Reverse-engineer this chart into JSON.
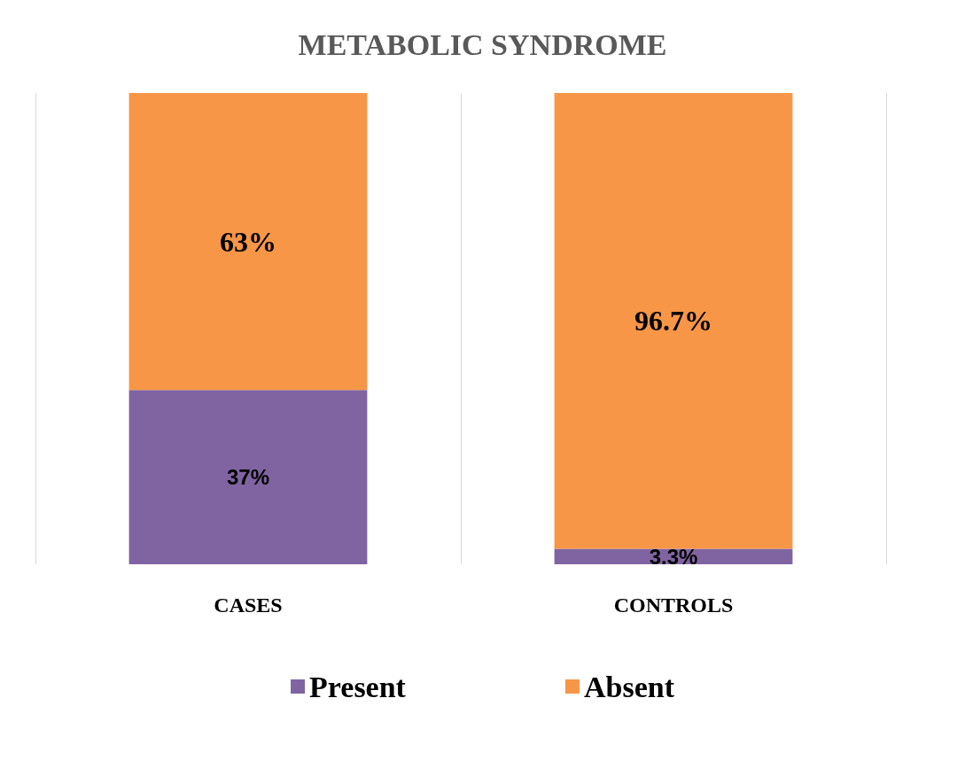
{
  "chart_data": {
    "type": "bar",
    "title": "METABOLIC SYNDROME",
    "categories": [
      "CASES",
      "CONTROLS"
    ],
    "stacked": true,
    "series": [
      {
        "name": "Present",
        "color": "#8064a2",
        "values": [
          37,
          3.3
        ],
        "value_labels": [
          "37%",
          "3.3%"
        ]
      },
      {
        "name": "Absent",
        "color": "#f79646",
        "values": [
          63,
          96.7
        ],
        "value_labels": [
          "63%",
          "96.7%"
        ]
      }
    ],
    "grid": "x",
    "legend": "bottom"
  }
}
